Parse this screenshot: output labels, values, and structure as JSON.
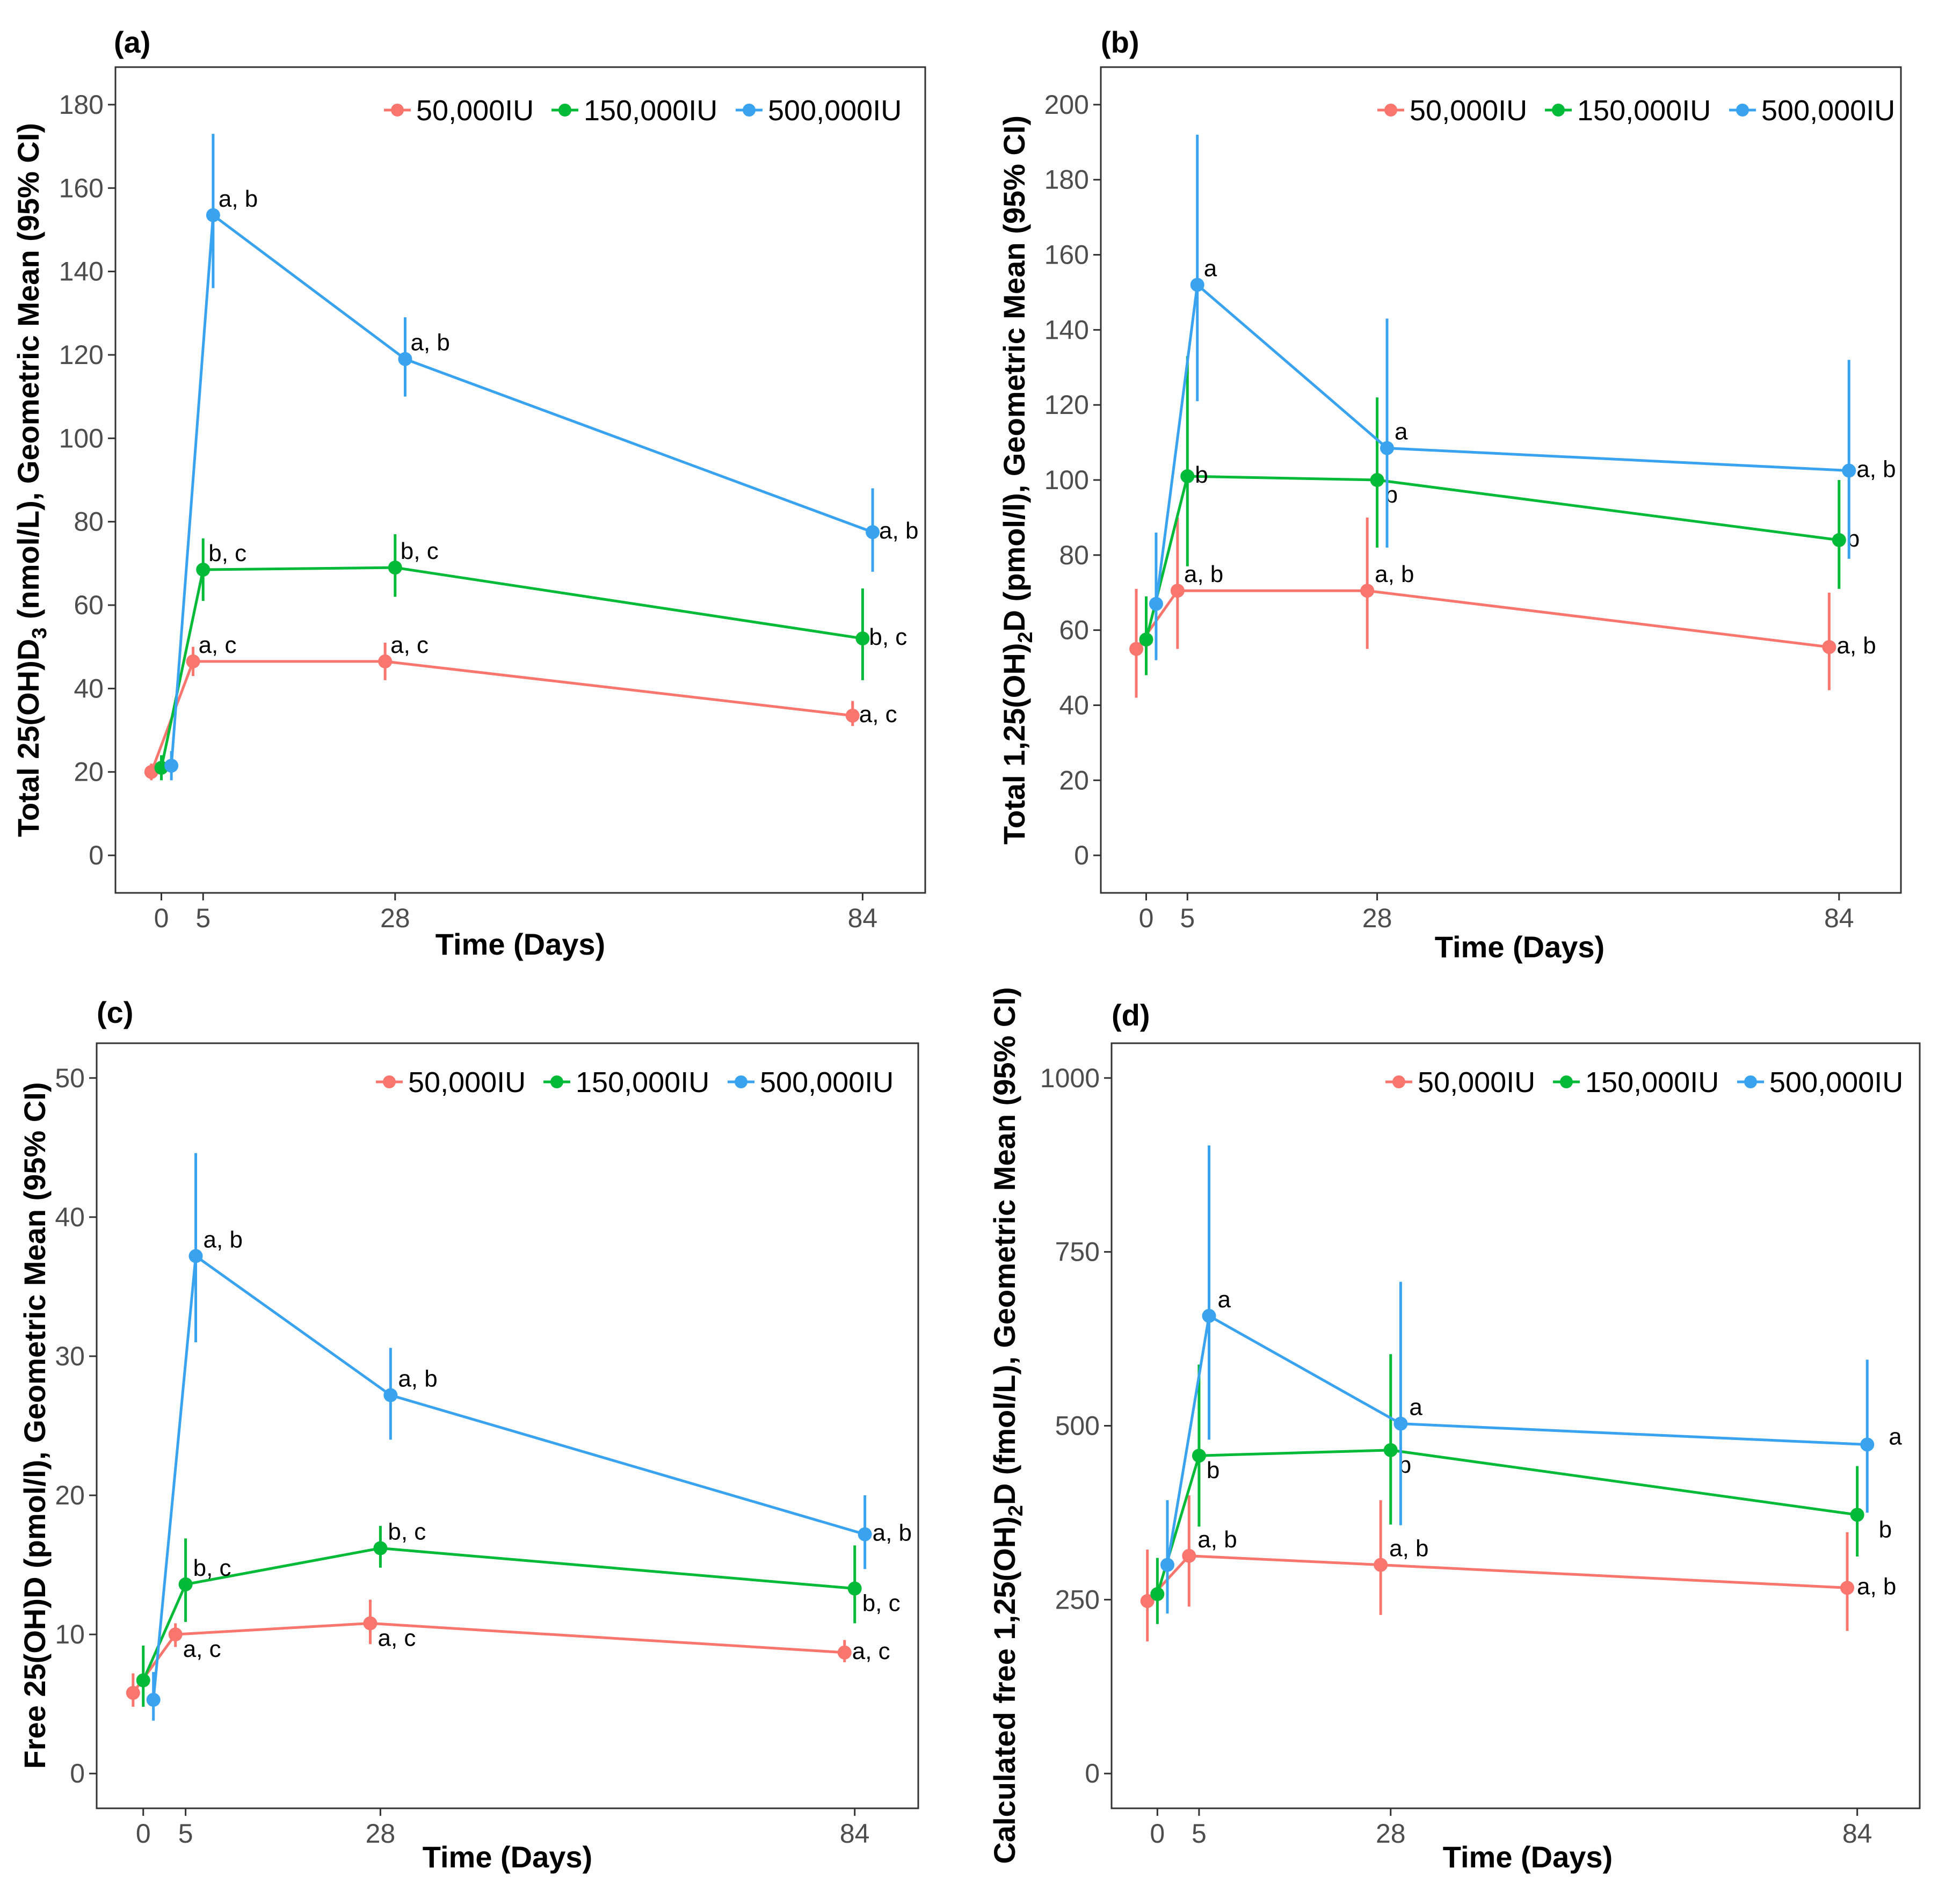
{
  "figure": {
    "legend": [
      {
        "name": "50,000IU",
        "color": "#F8766D"
      },
      {
        "name": "150,000IU",
        "color": "#00BA38"
      },
      {
        "name": "500,000IU",
        "color": "#3AA3F0"
      }
    ]
  },
  "chart_data": [
    {
      "type": "line",
      "panel": "(a)",
      "xlabel": "Time (Days)",
      "ylabel": {
        "pre": "Total 25(OH)D",
        "sub": "3",
        "post": " (nmol/L), Geometric Mean (95% CI)"
      },
      "xticks": [
        0,
        5,
        28,
        84
      ],
      "yticks": [
        0,
        20,
        40,
        60,
        80,
        100,
        120,
        140,
        160,
        180
      ],
      "xlim": [
        -5.5,
        91.5
      ],
      "ylim": [
        -9,
        189
      ],
      "series": [
        {
          "name": "50,000IU",
          "dodge": -1.2,
          "points": [
            {
              "x": 0,
              "y": 20,
              "lo": 18,
              "hi": 22,
              "label": ""
            },
            {
              "x": 5,
              "y": 46.5,
              "lo": 43,
              "hi": 50,
              "label": "a, c"
            },
            {
              "x": 28,
              "y": 46.5,
              "lo": 42,
              "hi": 51,
              "label": "a, c"
            },
            {
              "x": 84,
              "y": 33.5,
              "lo": 31,
              "hi": 37,
              "label": "a, c"
            }
          ]
        },
        {
          "name": "150,000IU",
          "dodge": 0,
          "points": [
            {
              "x": 0,
              "y": 21,
              "lo": 18,
              "hi": 24,
              "label": ""
            },
            {
              "x": 5,
              "y": 68.5,
              "lo": 61,
              "hi": 76,
              "label": "b, c"
            },
            {
              "x": 28,
              "y": 69,
              "lo": 62,
              "hi": 77,
              "label": "b, c"
            },
            {
              "x": 84,
              "y": 52,
              "lo": 42,
              "hi": 64,
              "label": "b, c"
            }
          ]
        },
        {
          "name": "500,000IU",
          "dodge": 1.2,
          "points": [
            {
              "x": 0,
              "y": 21.5,
              "lo": 18,
              "hi": 25,
              "label": ""
            },
            {
              "x": 5,
              "y": 153.5,
              "lo": 136,
              "hi": 173,
              "label": "a, b"
            },
            {
              "x": 28,
              "y": 119,
              "lo": 110,
              "hi": 129,
              "label": "a, b"
            },
            {
              "x": 84,
              "y": 77.5,
              "lo": 68,
              "hi": 88,
              "label": "a, b"
            }
          ]
        }
      ]
    },
    {
      "type": "line",
      "panel": "(b)",
      "xlabel": "Time (Days)",
      "ylabel": {
        "pre": "Total 1,25(OH)",
        "sub": "2",
        "post": "D (pmol/l), Geometric Mean (95% CI)"
      },
      "xticks": [
        0,
        5,
        28,
        84
      ],
      "yticks": [
        0,
        20,
        40,
        60,
        80,
        100,
        120,
        140,
        160,
        180,
        200
      ],
      "xlim": [
        -5.5,
        91.5
      ],
      "ylim": [
        -10,
        210
      ],
      "series": [
        {
          "name": "50,000IU",
          "dodge": -1.2,
          "points": [
            {
              "x": 0,
              "y": 55,
              "lo": 42,
              "hi": 71,
              "label": ""
            },
            {
              "x": 5,
              "y": 70.5,
              "lo": 55,
              "hi": 90,
              "label": "a, b"
            },
            {
              "x": 28,
              "y": 70.5,
              "lo": 55,
              "hi": 90,
              "label": "a, b"
            },
            {
              "x": 84,
              "y": 55.5,
              "lo": 44,
              "hi": 70,
              "label": "a, b"
            }
          ]
        },
        {
          "name": "150,000IU",
          "dodge": 0,
          "points": [
            {
              "x": 0,
              "y": 57.5,
              "lo": 48,
              "hi": 69,
              "label": ""
            },
            {
              "x": 5,
              "y": 101,
              "lo": 77,
              "hi": 133,
              "label": "b"
            },
            {
              "x": 28,
              "y": 100,
              "lo": 82,
              "hi": 122,
              "label": "b"
            },
            {
              "x": 84,
              "y": 84,
              "lo": 71,
              "hi": 100,
              "label": "b"
            }
          ]
        },
        {
          "name": "500,000IU",
          "dodge": 1.2,
          "points": [
            {
              "x": 0,
              "y": 67,
              "lo": 52,
              "hi": 86,
              "label": ""
            },
            {
              "x": 5,
              "y": 152,
              "lo": 121,
              "hi": 192,
              "label": "a"
            },
            {
              "x": 28,
              "y": 108.5,
              "lo": 82,
              "hi": 143,
              "label": "a"
            },
            {
              "x": 84,
              "y": 102.5,
              "lo": 79,
              "hi": 132,
              "label": "a, b"
            }
          ]
        }
      ]
    },
    {
      "type": "line",
      "panel": "(c)",
      "xlabel": "Time (Days)",
      "ylabel": {
        "pre": "Free 25(OH)D (pmol/l), Geometric Mean (95% CI)",
        "sub": "",
        "post": ""
      },
      "xticks": [
        0,
        5,
        28,
        84
      ],
      "yticks": [
        0,
        10,
        20,
        30,
        40,
        50
      ],
      "xlim": [
        -5.5,
        91.5
      ],
      "ylim": [
        -2.5,
        52.5
      ],
      "series": [
        {
          "name": "50,000IU",
          "dodge": -1.2,
          "points": [
            {
              "x": 0,
              "y": 5.8,
              "lo": 4.8,
              "hi": 7.2,
              "label": ""
            },
            {
              "x": 5,
              "y": 10.0,
              "lo": 9.1,
              "hi": 10.8,
              "label": "a, c"
            },
            {
              "x": 28,
              "y": 10.8,
              "lo": 9.3,
              "hi": 12.5,
              "label": "a, c"
            },
            {
              "x": 84,
              "y": 8.7,
              "lo": 8.0,
              "hi": 9.6,
              "label": "a, c"
            }
          ]
        },
        {
          "name": "150,000IU",
          "dodge": 0,
          "points": [
            {
              "x": 0,
              "y": 6.7,
              "lo": 4.8,
              "hi": 9.2,
              "label": ""
            },
            {
              "x": 5,
              "y": 13.6,
              "lo": 10.9,
              "hi": 16.9,
              "label": "b, c"
            },
            {
              "x": 28,
              "y": 16.2,
              "lo": 14.8,
              "hi": 17.8,
              "label": "b, c"
            },
            {
              "x": 84,
              "y": 13.3,
              "lo": 10.8,
              "hi": 16.4,
              "label": "b, c"
            }
          ]
        },
        {
          "name": "500,000IU",
          "dodge": 1.2,
          "points": [
            {
              "x": 0,
              "y": 5.3,
              "lo": 3.8,
              "hi": 7.3,
              "label": ""
            },
            {
              "x": 5,
              "y": 37.2,
              "lo": 31.0,
              "hi": 44.6,
              "label": "a, b"
            },
            {
              "x": 28,
              "y": 27.2,
              "lo": 24.0,
              "hi": 30.6,
              "label": "a, b"
            },
            {
              "x": 84,
              "y": 17.2,
              "lo": 14.7,
              "hi": 20.0,
              "label": "a, b"
            }
          ]
        }
      ]
    },
    {
      "type": "line",
      "panel": "(d)",
      "xlabel": "Time (Days)",
      "ylabel": {
        "pre": "Calculated free 1,25(OH)",
        "sub": "2",
        "post": "D (fmol/L), Geometric Mean (95% CI)"
      },
      "xticks": [
        0,
        5,
        28,
        84
      ],
      "yticks": [
        0,
        250,
        500,
        750,
        1000
      ],
      "xlim": [
        -5.5,
        91.5
      ],
      "ylim": [
        -50,
        1050
      ],
      "series": [
        {
          "name": "50,000IU",
          "dodge": -1.2,
          "points": [
            {
              "x": 0,
              "y": 248,
              "lo": 190,
              "hi": 322,
              "label": ""
            },
            {
              "x": 5,
              "y": 313,
              "lo": 240,
              "hi": 400,
              "label": "a, b"
            },
            {
              "x": 28,
              "y": 300,
              "lo": 228,
              "hi": 393,
              "label": "a, b"
            },
            {
              "x": 84,
              "y": 267,
              "lo": 205,
              "hi": 347,
              "label": "a, b"
            }
          ]
        },
        {
          "name": "150,000IU",
          "dodge": 0,
          "points": [
            {
              "x": 0,
              "y": 258,
              "lo": 215,
              "hi": 310,
              "label": ""
            },
            {
              "x": 5,
              "y": 457,
              "lo": 355,
              "hi": 588,
              "label": "b"
            },
            {
              "x": 28,
              "y": 465,
              "lo": 358,
              "hi": 603,
              "label": "b"
            },
            {
              "x": 84,
              "y": 372,
              "lo": 312,
              "hi": 442,
              "label": "b"
            }
          ]
        },
        {
          "name": "500,000IU",
          "dodge": 1.2,
          "points": [
            {
              "x": 0,
              "y": 300,
              "lo": 230,
              "hi": 393,
              "label": ""
            },
            {
              "x": 5,
              "y": 658,
              "lo": 480,
              "hi": 903,
              "label": "a"
            },
            {
              "x": 28,
              "y": 503,
              "lo": 357,
              "hi": 707,
              "label": "a"
            },
            {
              "x": 84,
              "y": 473,
              "lo": 375,
              "hi": 595,
              "label": "a"
            }
          ]
        }
      ]
    }
  ]
}
